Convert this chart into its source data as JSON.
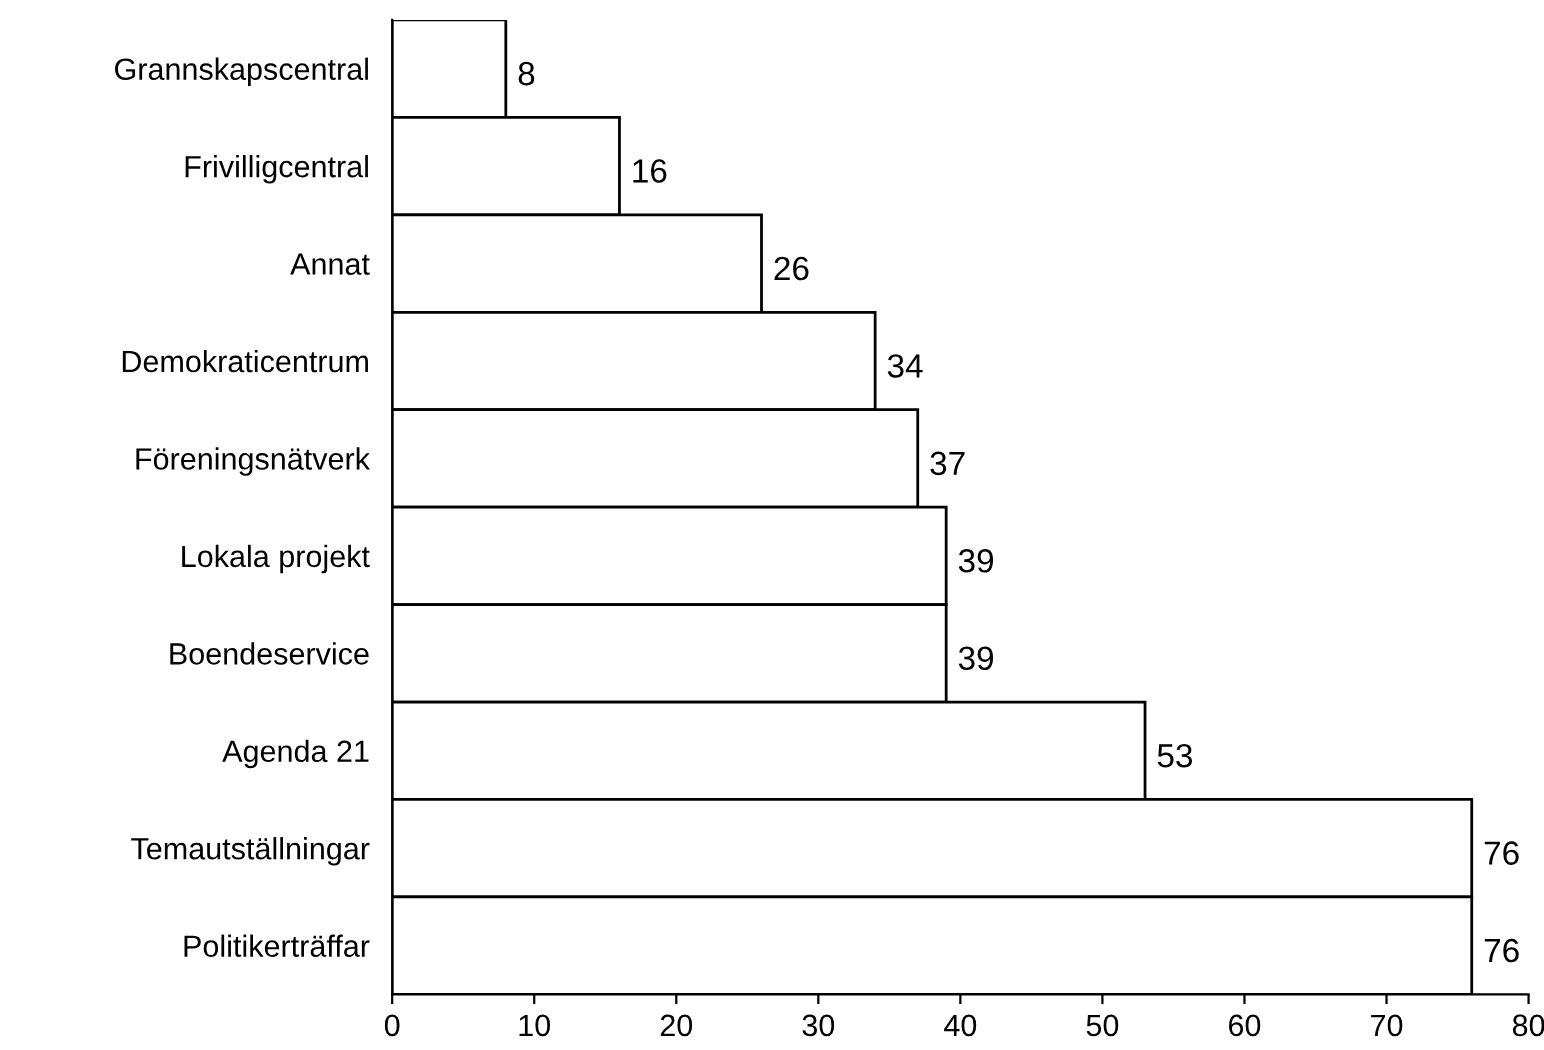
{
  "chart_data": {
    "type": "bar",
    "orientation": "horizontal",
    "categories": [
      "Grannskapscentral",
      "Frivilligcentral",
      "Annat",
      "Demokraticentrum",
      "Föreningsnätverk",
      "Lokala projekt",
      "Boendeservice",
      "Agenda 21",
      "Temautställningar",
      "Politikerträffar"
    ],
    "values": [
      8,
      16,
      26,
      34,
      37,
      39,
      39,
      53,
      76,
      76
    ],
    "color": "#ffffff",
    "xlim": [
      0,
      80
    ],
    "xticks": [
      0,
      10,
      20,
      30,
      40,
      50,
      60,
      70,
      80
    ],
    "data_labels": true,
    "grid": false,
    "legend": false
  }
}
